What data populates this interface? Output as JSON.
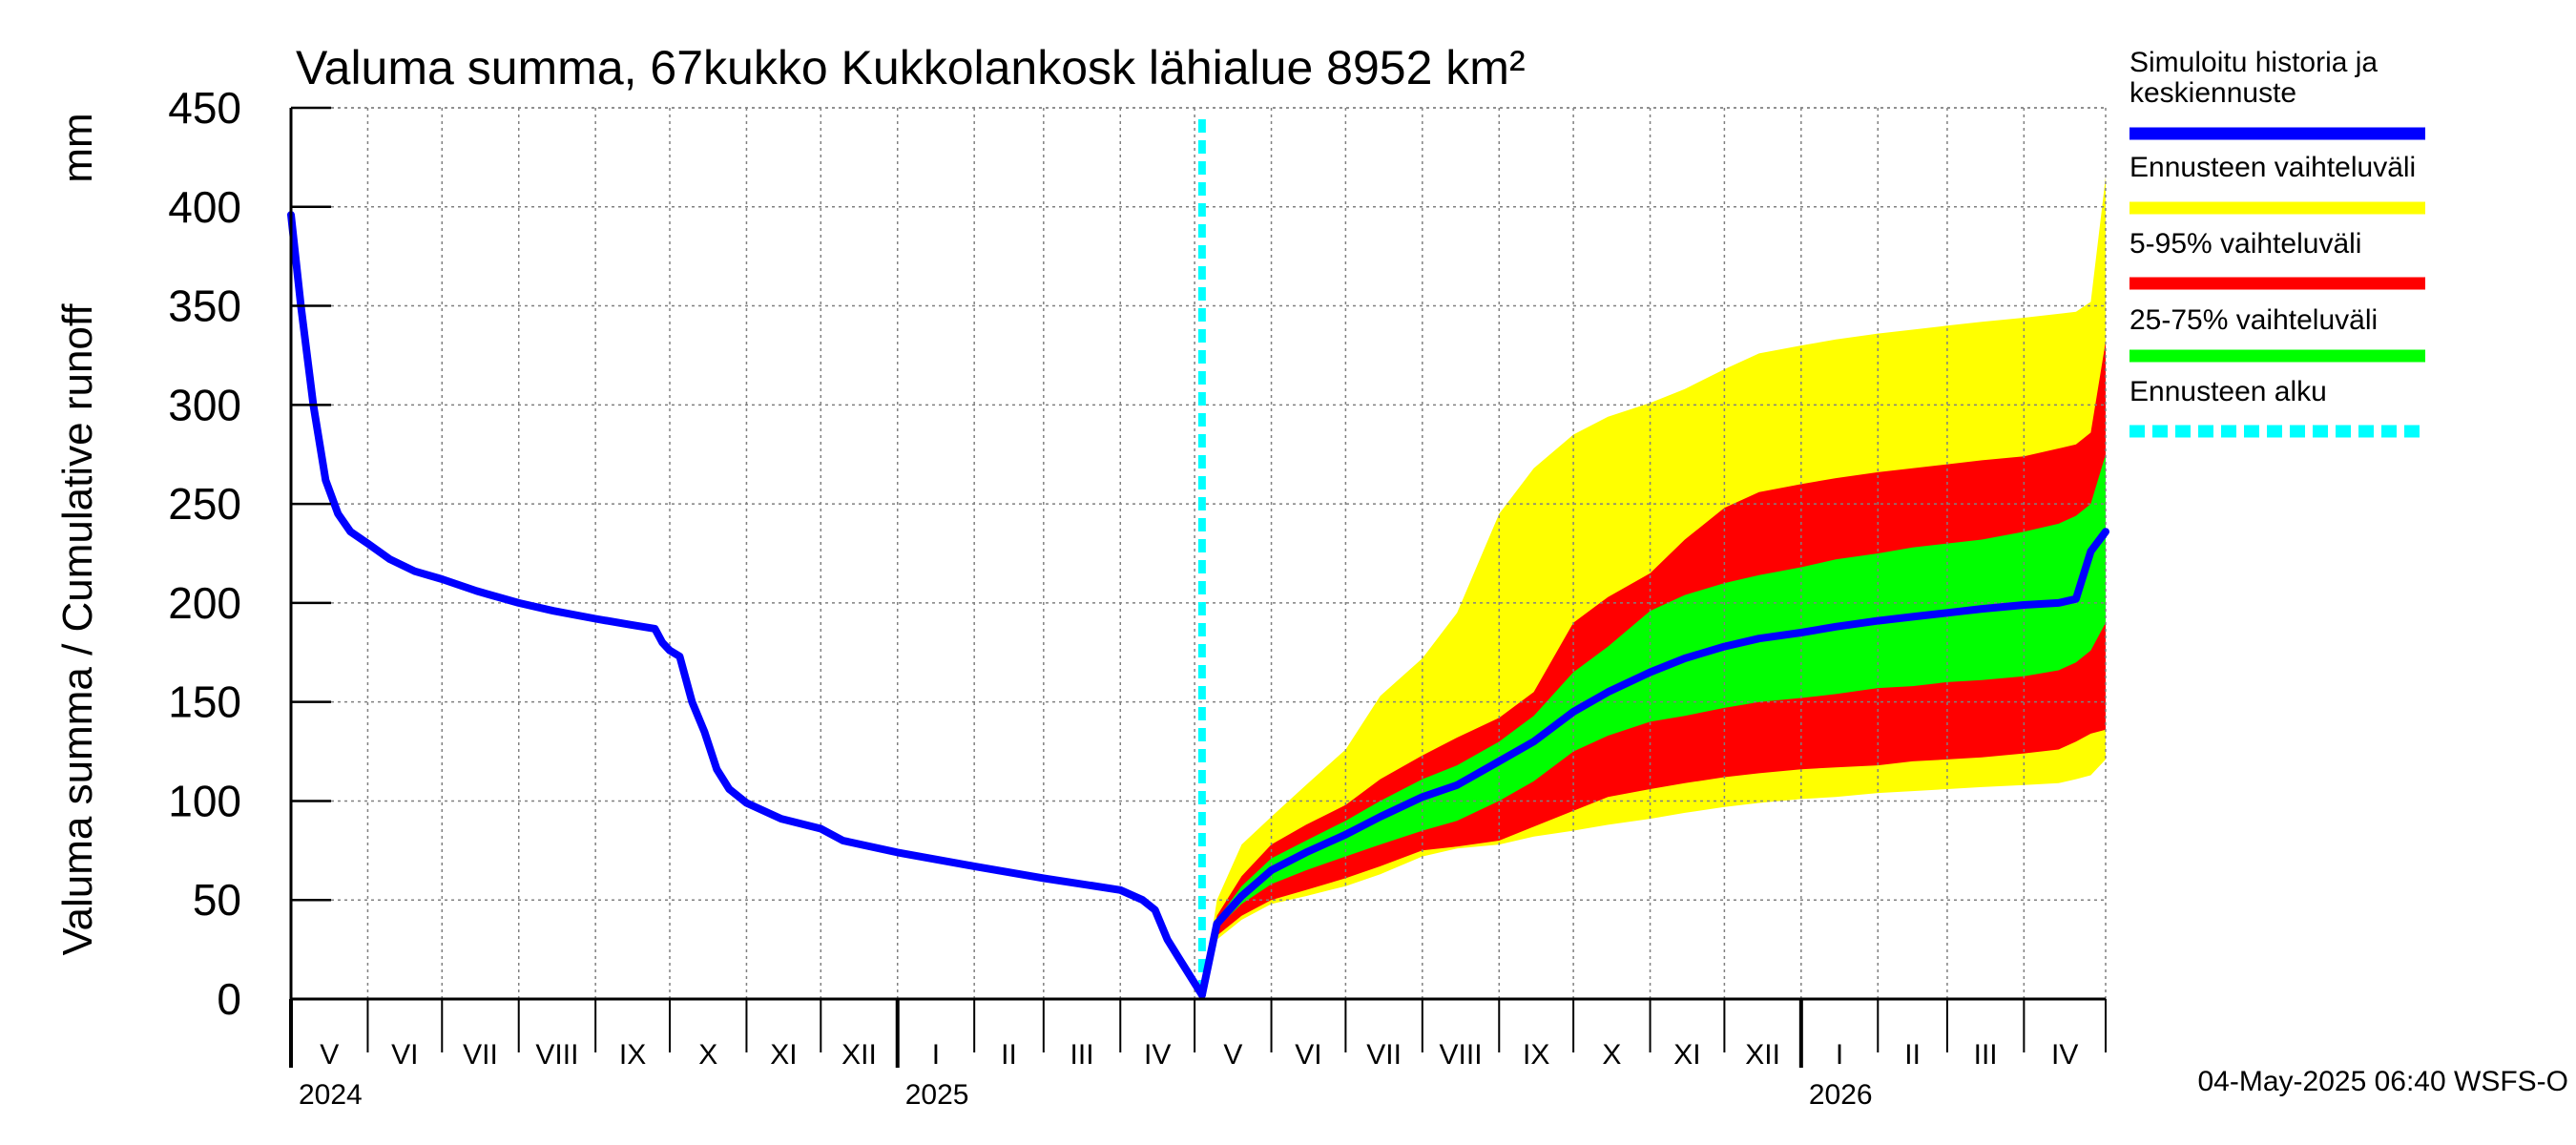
{
  "chart_data": {
    "type": "area",
    "title": "Valuma summa, 67kukko Kukkolankosk lähialue 8952 km²",
    "ylabel": "Valuma summa / Cumulative runoff",
    "yunit": "mm",
    "ylim": [
      0,
      450
    ],
    "yticks": [
      "0",
      "50",
      "100",
      "150",
      "200",
      "250",
      "300",
      "350",
      "400",
      "450"
    ],
    "xlim": [
      "2024-05-01",
      "2026-05-04"
    ],
    "grid": true,
    "forecast_start": "2025-05-04",
    "timestamp": "04-May-2025 06:40 WSFS-O",
    "months": [
      {
        "label": "V",
        "start": "2024-05-01"
      },
      {
        "label": "VI",
        "start": "2024-06-01"
      },
      {
        "label": "VII",
        "start": "2024-07-01"
      },
      {
        "label": "VIII",
        "start": "2024-08-01"
      },
      {
        "label": "IX",
        "start": "2024-09-01"
      },
      {
        "label": "X",
        "start": "2024-10-01"
      },
      {
        "label": "XI",
        "start": "2024-11-01"
      },
      {
        "label": "XII",
        "start": "2024-12-01"
      },
      {
        "label": "I",
        "start": "2025-01-01"
      },
      {
        "label": "II",
        "start": "2025-02-01"
      },
      {
        "label": "III",
        "start": "2025-03-01"
      },
      {
        "label": "IV",
        "start": "2025-04-01"
      },
      {
        "label": "V",
        "start": "2025-05-01"
      },
      {
        "label": "VI",
        "start": "2025-06-01"
      },
      {
        "label": "VII",
        "start": "2025-07-01"
      },
      {
        "label": "VIII",
        "start": "2025-08-01"
      },
      {
        "label": "IX",
        "start": "2025-09-01"
      },
      {
        "label": "X",
        "start": "2025-10-01"
      },
      {
        "label": "XI",
        "start": "2025-11-01"
      },
      {
        "label": "XII",
        "start": "2025-12-01"
      },
      {
        "label": "I",
        "start": "2026-01-01"
      },
      {
        "label": "II",
        "start": "2026-02-01"
      },
      {
        "label": "III",
        "start": "2026-03-01"
      },
      {
        "label": "IV",
        "start": "2026-04-01"
      }
    ],
    "years": [
      {
        "label": "2024",
        "start": "2024-05-01"
      },
      {
        "label": "2025",
        "start": "2025-01-01"
      },
      {
        "label": "2026",
        "start": "2026-01-01"
      }
    ],
    "legend": [
      {
        "label": "Simuloitu historia ja keskiennuste",
        "color": "#0000ff",
        "style": "solid"
      },
      {
        "label": "Ennusteen vaihteluväli",
        "color": "#ffff00",
        "style": "solid"
      },
      {
        "label": "5-95% vaihteluväli",
        "color": "#ff0000",
        "style": "solid"
      },
      {
        "label": "25-75% vaihteluväli",
        "color": "#00ff00",
        "style": "solid"
      },
      {
        "label": "Ennusteen alku",
        "color": "#00ffff",
        "style": "dashed"
      }
    ],
    "legend_position": "right",
    "history": {
      "name": "Simuloitu historia ja keskiennuste",
      "color": "#0000ff",
      "x": [
        "2024-05-01",
        "2024-05-05",
        "2024-05-10",
        "2024-05-15",
        "2024-05-20",
        "2024-05-25",
        "2024-06-01",
        "2024-06-10",
        "2024-06-20",
        "2024-07-01",
        "2024-07-15",
        "2024-08-01",
        "2024-08-15",
        "2024-09-01",
        "2024-09-15",
        "2024-09-25",
        "2024-09-28",
        "2024-10-01",
        "2024-10-05",
        "2024-10-10",
        "2024-10-15",
        "2024-10-20",
        "2024-10-25",
        "2024-11-01",
        "2024-11-15",
        "2024-12-01",
        "2024-12-10",
        "2025-01-01",
        "2025-02-01",
        "2025-03-01",
        "2025-04-01",
        "2025-04-10",
        "2025-04-15",
        "2025-04-20",
        "2025-04-25",
        "2025-04-30",
        "2025-05-04"
      ],
      "y": [
        396,
        350,
        300,
        262,
        245,
        236,
        230,
        222,
        216,
        212,
        206,
        200,
        196,
        192,
        189,
        187,
        180,
        176,
        173,
        150,
        135,
        116,
        106,
        99,
        91,
        86,
        80,
        74,
        67,
        61,
        55,
        50,
        45,
        30,
        20,
        10,
        2
      ]
    },
    "forecast": {
      "x": [
        "2025-05-04",
        "2025-05-10",
        "2025-05-20",
        "2025-06-01",
        "2025-06-15",
        "2025-07-01",
        "2025-07-15",
        "2025-08-01",
        "2025-08-15",
        "2025-09-01",
        "2025-09-15",
        "2025-10-01",
        "2025-10-15",
        "2025-11-01",
        "2025-11-15",
        "2025-12-01",
        "2025-12-15",
        "2026-01-01",
        "2026-01-15",
        "2026-02-01",
        "2026-02-15",
        "2026-03-01",
        "2026-03-15",
        "2026-04-01",
        "2026-04-15",
        "2026-04-22",
        "2026-04-28",
        "2026-05-04"
      ],
      "min": [
        2,
        30,
        40,
        48,
        52,
        57,
        63,
        72,
        76,
        78,
        82,
        85,
        88,
        91,
        94,
        97,
        99,
        101,
        102,
        104,
        105,
        106,
        107,
        108,
        109,
        111,
        113,
        121
      ],
      "p05": [
        2,
        32,
        42,
        50,
        55,
        61,
        67,
        75,
        77,
        80,
        87,
        95,
        102,
        106,
        109,
        112,
        114,
        116,
        117,
        118,
        120,
        121,
        122,
        124,
        126,
        130,
        134,
        136
      ],
      "p25": [
        2,
        36,
        48,
        58,
        65,
        72,
        78,
        85,
        90,
        100,
        110,
        125,
        133,
        140,
        143,
        147,
        150,
        152,
        154,
        157,
        158,
        160,
        161,
        163,
        166,
        170,
        176,
        190
      ],
      "median": [
        2,
        38,
        52,
        65,
        74,
        83,
        92,
        102,
        108,
        120,
        130,
        145,
        155,
        165,
        172,
        178,
        182,
        185,
        188,
        191,
        193,
        195,
        197,
        199,
        200,
        202,
        226,
        236
      ],
      "p75": [
        2,
        40,
        57,
        71,
        80,
        90,
        100,
        111,
        118,
        130,
        143,
        165,
        178,
        196,
        204,
        210,
        214,
        218,
        222,
        225,
        228,
        230,
        232,
        236,
        240,
        244,
        250,
        275
      ],
      "p95": [
        2,
        42,
        62,
        78,
        88,
        98,
        111,
        123,
        132,
        142,
        155,
        190,
        203,
        215,
        232,
        248,
        256,
        260,
        263,
        266,
        268,
        270,
        272,
        274,
        278,
        280,
        286,
        332
      ],
      "max": [
        2,
        50,
        78,
        92,
        108,
        126,
        153,
        172,
        195,
        245,
        268,
        285,
        294,
        301,
        308,
        318,
        326,
        330,
        333,
        336,
        338,
        340,
        342,
        344,
        346,
        347,
        352,
        415
      ]
    }
  }
}
